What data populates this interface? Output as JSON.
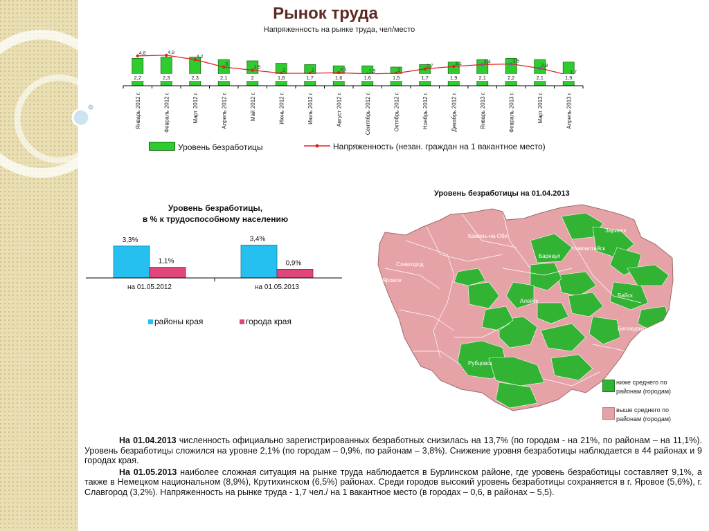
{
  "title": "Рынок труда",
  "subtitle": "Напряженность на рынке труда, чел/место",
  "colors": {
    "unemployment": "#2ecc2e",
    "tension": "#e02020",
    "districts": "#25c0f0",
    "cities": "#e0457b",
    "map_below": "#33b333",
    "map_above": "#e6a3a7"
  },
  "top_legend": {
    "unemployment": "Уровень безработицы",
    "tension": "Напряженность (незан. граждан на 1 вакантное место)"
  },
  "section_title": {
    "line1": "Уровень безработицы,",
    "line2": "в % к трудоспособному населению"
  },
  "bottom_legend": {
    "districts": "районы края",
    "cities": "города края"
  },
  "map": {
    "title": "Уровень безработицы на 01.04.2013",
    "legend_below": [
      "ниже среднего по",
      "районам (городам)"
    ],
    "legend_above": [
      "выше среднего по",
      "районам (городам)"
    ],
    "labels": [
      "Славгород",
      "Барнаул",
      "Бийск",
      "Рубцовск",
      "Алейск",
      "Белокуриха",
      "Камень-на-Оби",
      "Заринск",
      "Новоалтайск",
      "Яровое"
    ]
  },
  "chart_data": [
    {
      "type": "bar",
      "title": "Напряженность на рынке труда, чел/место",
      "categories": [
        "Январь 2012 г.",
        "Февраль 2012 г.",
        "Март 2012 г.",
        "Апрель 2012 г.",
        "Май 2012 г.",
        "Июнь 2012 г.",
        "Июль 2012 г.",
        "Август 2012 г.",
        "Сентябрь 2012 г.",
        "Октябрь 2012 г.",
        "Ноябрь 2012 г.",
        "Декабрь 2012 г.",
        "Январь 2013 г.",
        "Февраль 2013 г.",
        "Март 2013 г.",
        "Апрель 2013 г."
      ],
      "series": [
        {
          "name": "Уровень безработицы",
          "kind": "bar",
          "values": [
            2.2,
            2.3,
            2.3,
            2.1,
            2.0,
            1.8,
            1.7,
            1.6,
            1.6,
            1.5,
            1.7,
            1.9,
            2.1,
            2.2,
            2.1,
            1.9
          ]
        },
        {
          "name": "Напряженность (незан. граждан на 1 вакантное место)",
          "kind": "line",
          "values": [
            4.8,
            4.9,
            4.2,
            3.0,
            2.5,
            2.0,
            2.0,
            2.1,
            1.9,
            2.0,
            2.7,
            3.1,
            3.4,
            3.5,
            2.8,
            1.7
          ]
        }
      ],
      "bar_labels": [
        "2,2",
        "2,3",
        "2,3",
        "2,1",
        "2",
        "1,8",
        "1,7",
        "1,6",
        "1,6",
        "1,5",
        "1,7",
        "1,9",
        "2,1",
        "2,2",
        "2,1",
        "1,9"
      ],
      "line_labels": [
        "4,8",
        "4,9",
        "4,2",
        "3",
        "2,5",
        "2",
        "2",
        "2,1",
        "1,9",
        "2",
        "2,7",
        "3,1",
        "3,4",
        "3,5",
        "2,8",
        "1,7"
      ],
      "legend": "bottom"
    },
    {
      "type": "bar",
      "title": "Уровень безработицы, в % к трудоспособному населению",
      "categories": [
        "на 01.05.2012",
        "на 01.05.2013"
      ],
      "series": [
        {
          "name": "районы края",
          "values": [
            3.3,
            3.4
          ]
        },
        {
          "name": "города края",
          "values": [
            1.1,
            0.9
          ]
        }
      ],
      "data_labels": [
        [
          "3,3%",
          "3,4%"
        ],
        [
          "1,1%",
          "0,9%"
        ]
      ],
      "legend": "bottom"
    }
  ],
  "paragraphs": [
    {
      "bold": "На 01.04.2013",
      "text": " численность официально зарегистрированных безработных снизилась на 13,7% (по городам - на 21%, по районам – на 11,1%). Уровень безработицы сложился на уровне 2,1% (по городам – 0,9%, по районам – 3,8%). Снижение уровня безработицы наблюдается в 44 районах и 9 городах края."
    },
    {
      "bold": "На 01.05.2013",
      "text": " наиболее сложная ситуация на рынке труда наблюдается в Бурлинском районе, где уровень безработицы составляет 9,1%, а также в Немецком национальном (8,9%), Крутихинском (6,5%) районах. Среди городов высокий уровень безработицы сохраняется в г. Яровое (5,6%), г. Славгород (3,2%). Напряженность на рынке труда  - 1,7 чел./ на 1 вакантное место (в городах – 0,6, в районах – 5,5)."
    }
  ]
}
